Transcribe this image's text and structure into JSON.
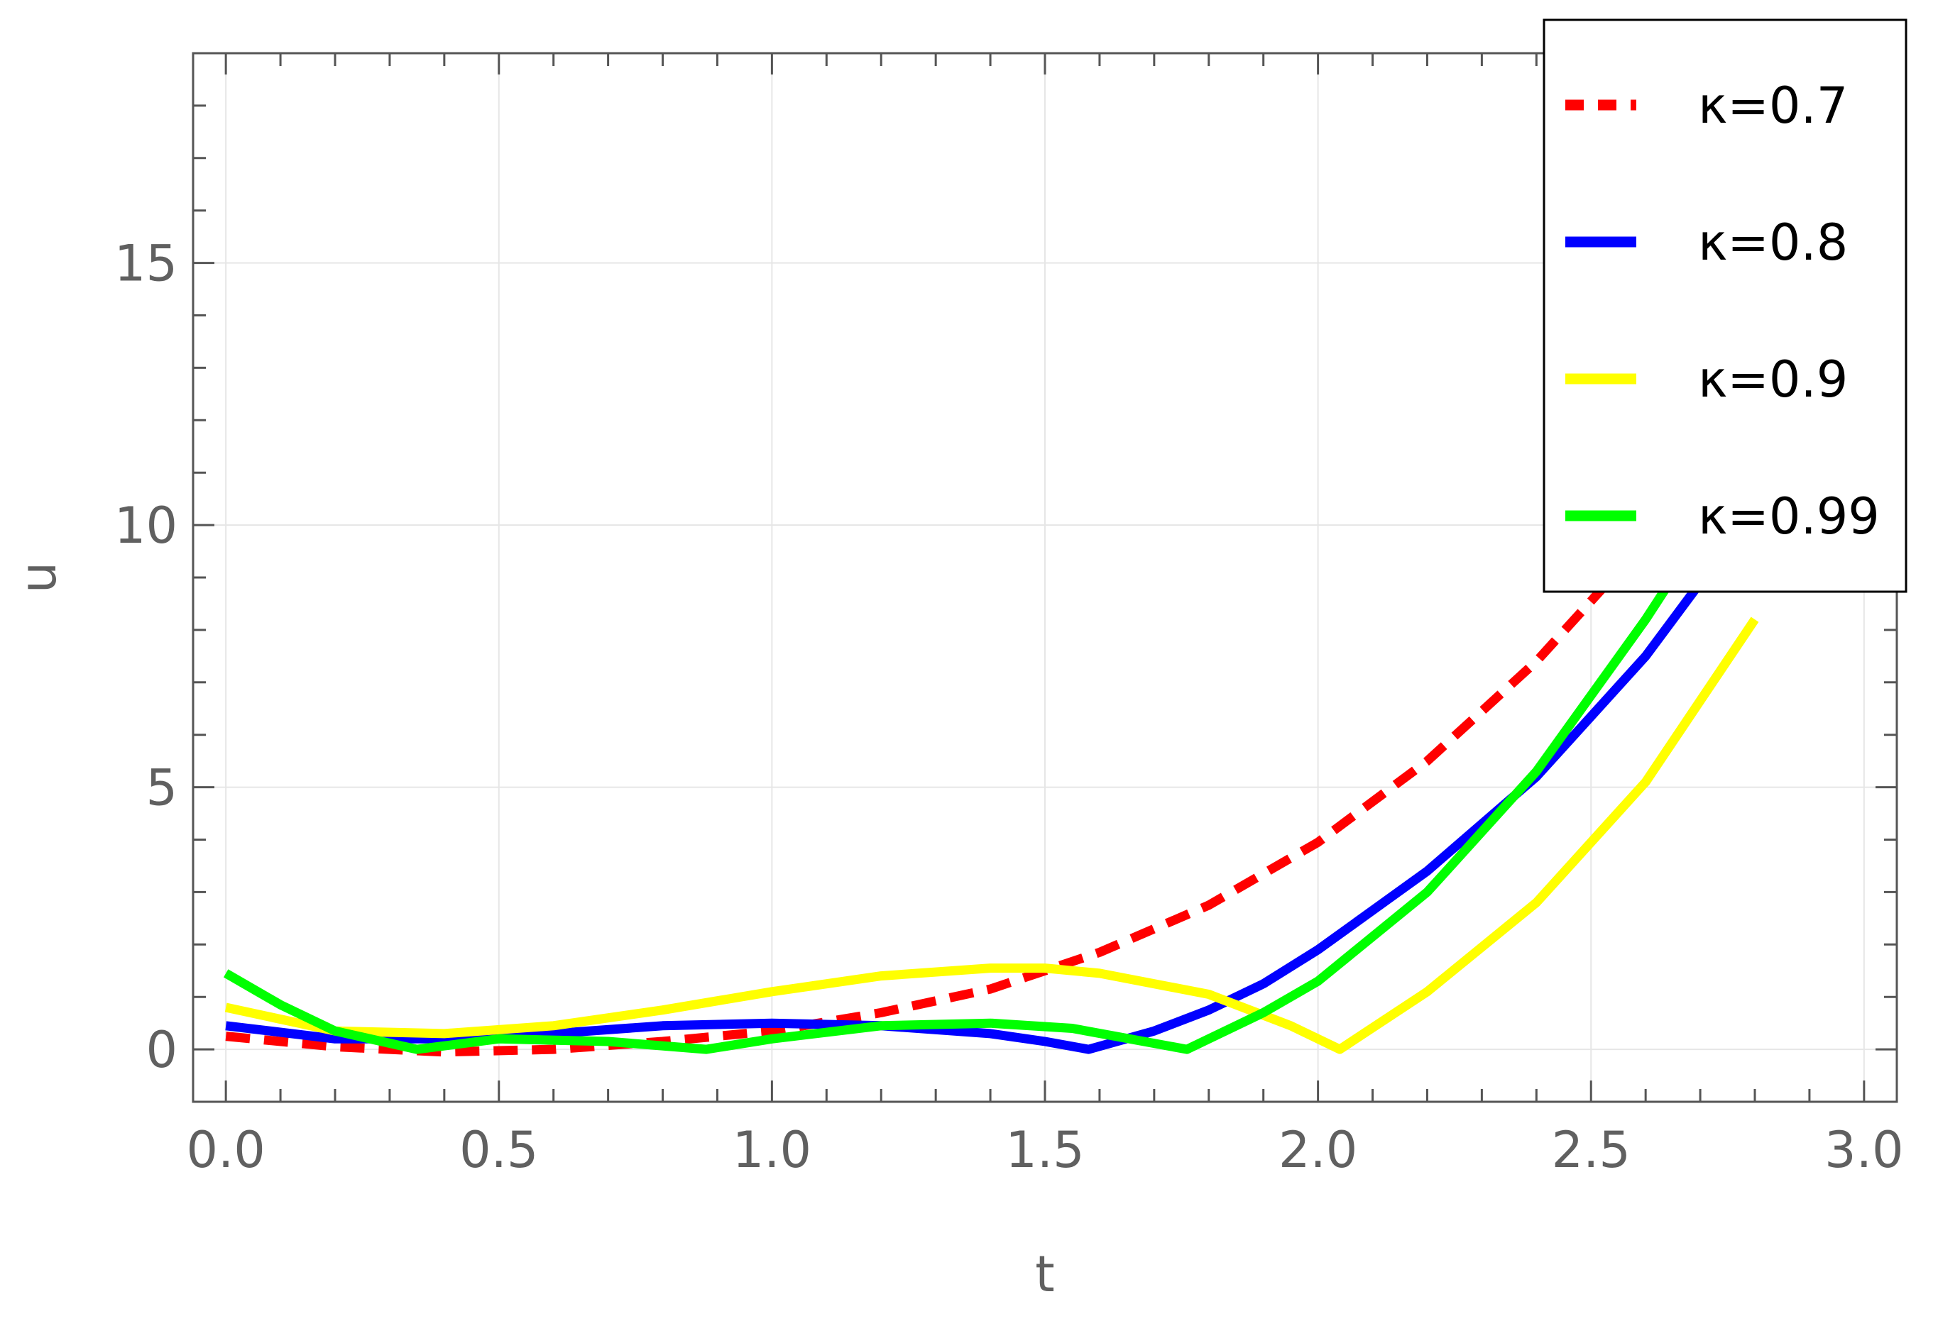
{
  "chart_data": {
    "type": "line",
    "title": "",
    "xlabel": "t",
    "ylabel": "u",
    "xlim": [
      -0.06,
      3.06
    ],
    "ylim": [
      -1.0,
      19.0
    ],
    "x_ticks": [
      0.0,
      0.5,
      1.0,
      1.5,
      2.0,
      2.5,
      3.0
    ],
    "x_tick_labels": [
      "0.0",
      "0.5",
      "1.0",
      "1.5",
      "2.0",
      "2.5",
      "3.0"
    ],
    "y_ticks": [
      0,
      5,
      10,
      15
    ],
    "y_tick_labels": [
      "0",
      "5",
      "10",
      "15"
    ],
    "x_minor_step": 0.1,
    "y_minor_step": 1,
    "grid": true,
    "legend_position": "top-right",
    "series": [
      {
        "name": "κ=0.7",
        "color": "#ff0000",
        "style": "dashed",
        "x": [
          0,
          0.2,
          0.4,
          0.6,
          0.8,
          1.0,
          1.2,
          1.4,
          1.6,
          1.8,
          2.0,
          2.2,
          2.4,
          2.6,
          2.8
        ],
        "y": [
          0.25,
          0.05,
          -0.05,
          0.0,
          0.15,
          0.35,
          0.7,
          1.15,
          1.85,
          2.75,
          3.95,
          5.5,
          7.4,
          9.7,
          12.5
        ]
      },
      {
        "name": "κ=0.8",
        "color": "#0000ff",
        "style": "solid",
        "x": [
          0,
          0.2,
          0.4,
          0.6,
          0.8,
          1.0,
          1.2,
          1.4,
          1.5,
          1.58,
          1.7,
          1.8,
          1.9,
          2.0,
          2.2,
          2.4,
          2.6,
          2.8
        ],
        "y": [
          0.45,
          0.2,
          0.2,
          0.3,
          0.45,
          0.5,
          0.45,
          0.3,
          0.15,
          0.0,
          0.35,
          0.75,
          1.25,
          1.9,
          3.4,
          5.2,
          7.5,
          10.3
        ]
      },
      {
        "name": "κ=0.9",
        "color": "#ffff00",
        "style": "solid",
        "x": [
          0,
          0.2,
          0.4,
          0.6,
          0.8,
          1.0,
          1.2,
          1.4,
          1.5,
          1.6,
          1.8,
          1.95,
          2.04,
          2.2,
          2.4,
          2.6,
          2.8
        ],
        "y": [
          0.8,
          0.35,
          0.3,
          0.45,
          0.75,
          1.1,
          1.4,
          1.55,
          1.55,
          1.45,
          1.05,
          0.45,
          0.0,
          1.1,
          2.8,
          5.1,
          8.2
        ]
      },
      {
        "name": "κ=0.99",
        "color": "#00ff00",
        "style": "solid",
        "x": [
          0,
          0.1,
          0.2,
          0.35,
          0.5,
          0.7,
          0.88,
          1.0,
          1.2,
          1.4,
          1.55,
          1.76,
          1.9,
          2.0,
          2.2,
          2.4,
          2.6,
          2.7
        ],
        "y": [
          1.45,
          0.85,
          0.35,
          0.0,
          0.2,
          0.15,
          0.0,
          0.2,
          0.45,
          0.5,
          0.4,
          0.0,
          0.7,
          1.3,
          3.0,
          5.3,
          8.2,
          9.8
        ]
      }
    ]
  }
}
